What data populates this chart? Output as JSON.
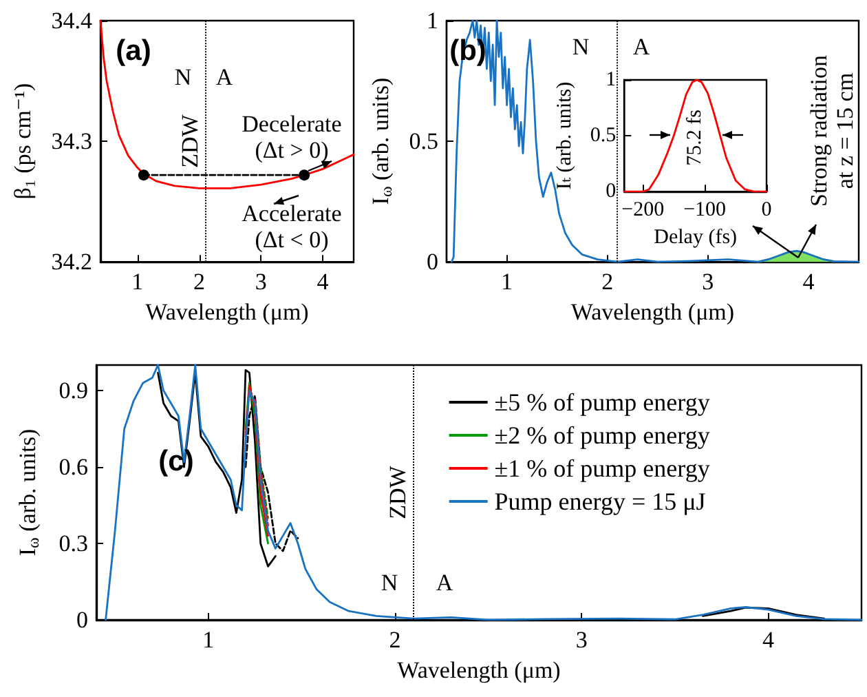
{
  "chart_data": [
    {
      "type": "line",
      "ylabel": "β₁ (ps cm⁻¹)",
      "xlabel": "Wavelength (μm)",
      "xlim": [
        0.4,
        4.5
      ],
      "xticks": [
        1,
        2,
        3,
        4
      ],
      "ylim": [
        34.2,
        34.4
      ],
      "yticks": [
        34.2,
        34.3,
        34.4
      ],
      "annotations": [
        "(a)",
        "N",
        "A",
        "Decelerate (Δt > 0)",
        "Accelerate (Δt < 0)"
      ],
      "ref_lines": [
        {
          "axis": "x",
          "value": 2.1,
          "label": "ZDW",
          "color": "#000000",
          "line_style": "dotted"
        }
      ],
      "series": [
        {
          "color": "#ff0000",
          "marker": "none",
          "line_style": "solid",
          "x": [
            0.4,
            0.45,
            0.5,
            0.6,
            0.7,
            0.85,
            1.0,
            1.1,
            1.3,
            1.6,
            2.0,
            2.5,
            3.0,
            3.5,
            3.7,
            4.0,
            4.5
          ],
          "values": [
            34.4,
            34.37,
            34.35,
            34.325,
            34.305,
            34.288,
            34.278,
            34.273,
            34.267,
            34.263,
            34.261,
            34.261,
            34.264,
            34.269,
            34.272,
            34.277,
            34.289
          ]
        },
        {
          "color": "#000000",
          "marker": "circle",
          "line_style": "dashed",
          "x": [
            1.1,
            3.7
          ],
          "values": [
            34.272,
            34.272
          ]
        }
      ]
    },
    {
      "type": "line",
      "ylabel": "I$_{ω}$ (arb. units)",
      "xlabel": "Wavelength (μm)",
      "xlim": [
        0.4,
        4.5
      ],
      "xticks": [
        1,
        2,
        3,
        4
      ],
      "ylim": [
        0,
        1
      ],
      "yticks": [
        0,
        0.5,
        1
      ],
      "annotations": [
        "(b)",
        "N",
        "A",
        "Strong radiation at z = 15 cm"
      ],
      "ref_lines": [
        {
          "axis": "x",
          "value": 2.1,
          "color": "#000000",
          "line_style": "dotted"
        }
      ],
      "series": [
        {
          "type": "area",
          "color": "#80e060",
          "x": [
            3.5,
            3.6,
            3.7,
            3.8,
            3.88,
            3.95,
            4.05,
            4.15,
            4.25
          ],
          "values": [
            0,
            0.01,
            0.025,
            0.04,
            0.045,
            0.04,
            0.025,
            0.01,
            0.002
          ]
        },
        {
          "color": "#1a73c2",
          "x": [
            0.45,
            0.47,
            0.5,
            0.53,
            0.56,
            0.6,
            0.63,
            0.66,
            0.68,
            0.7,
            0.72,
            0.74,
            0.76,
            0.78,
            0.8,
            0.82,
            0.84,
            0.86,
            0.88,
            0.9,
            0.92,
            0.94,
            0.96,
            0.98,
            1.0,
            1.02,
            1.04,
            1.06,
            1.08,
            1.1,
            1.12,
            1.14,
            1.16,
            1.18,
            1.2,
            1.23,
            1.26,
            1.29,
            1.32,
            1.36,
            1.4,
            1.44,
            1.48,
            1.52,
            1.58,
            1.65,
            1.75,
            1.9,
            2.1,
            2.3,
            2.5,
            2.8,
            3.2,
            3.5,
            3.6,
            3.7,
            3.8,
            3.88,
            3.95,
            4.05,
            4.15,
            4.25,
            4.5
          ],
          "values": [
            0,
            0.02,
            0.45,
            0.75,
            0.85,
            0.92,
            0.95,
            1.0,
            0.93,
            1.0,
            0.9,
            0.98,
            0.85,
            0.97,
            0.8,
            0.95,
            0.75,
            0.9,
            0.65,
            1.0,
            0.85,
            0.95,
            0.72,
            0.85,
            0.65,
            0.8,
            0.6,
            0.72,
            0.55,
            0.65,
            0.48,
            0.58,
            0.45,
            0.6,
            0.8,
            0.92,
            0.75,
            0.5,
            0.35,
            0.27,
            0.33,
            0.37,
            0.3,
            0.2,
            0.12,
            0.07,
            0.03,
            0.01,
            0,
            0.01,
            0,
            0.003,
            0.01,
            0,
            0.01,
            0.025,
            0.04,
            0.045,
            0.04,
            0.025,
            0.01,
            0.002,
            0
          ]
        }
      ]
    },
    {
      "type": "line",
      "ylabel": "Iₜ (arb. units)",
      "xlabel": "Delay (fs)",
      "xlim": [
        -230,
        0
      ],
      "xticks": [
        {
          "value": -200,
          "label": "−200"
        },
        {
          "value": -100,
          "label": "−100"
        },
        0
      ],
      "ylim": [
        0,
        1
      ],
      "yticks": [
        0,
        0.5,
        1
      ],
      "annotations": [
        "75.2 fs"
      ],
      "series": [
        {
          "color": "#ff0000",
          "x": [
            -230,
            -200,
            -190,
            -175,
            -160,
            -150,
            -140,
            -130,
            -120,
            -113,
            -105,
            -95,
            -85,
            -75,
            -65,
            -50,
            -35,
            -20,
            0
          ],
          "values": [
            0,
            0,
            0.02,
            0.15,
            0.35,
            0.5,
            0.68,
            0.87,
            0.98,
            1,
            0.98,
            0.88,
            0.7,
            0.5,
            0.3,
            0.1,
            0.02,
            0,
            0
          ]
        }
      ]
    },
    {
      "type": "line",
      "ylabel": "I$_{ω}$ (arb. units)",
      "xlabel": "Wavelength (μm)",
      "xlim": [
        0.4,
        4.5
      ],
      "xticks": [
        1,
        2,
        3,
        4
      ],
      "ylim": [
        0,
        1
      ],
      "yticks": [
        0,
        0.3,
        0.6,
        0.9
      ],
      "legend": "top right",
      "annotations": [
        "(c)",
        "N",
        "A"
      ],
      "ref_lines": [
        {
          "axis": "x",
          "value": 2.1,
          "label": "ZDW",
          "color": "#000000",
          "line_style": "dotted"
        }
      ],
      "x": [
        0.45,
        0.5,
        0.55,
        0.6,
        0.65,
        0.7,
        0.73,
        0.76,
        0.8,
        0.84,
        0.87,
        0.9,
        0.93,
        0.96,
        1.0,
        1.04,
        1.08,
        1.12,
        1.15,
        1.18,
        1.2,
        1.22,
        1.25,
        1.28,
        1.32,
        1.36,
        1.4,
        1.44,
        1.48,
        1.52,
        1.58,
        1.65,
        1.75,
        1.9,
        2.1,
        2.3,
        2.5,
        2.8,
        3.2,
        3.5,
        3.65,
        3.8,
        3.88,
        4.0,
        4.15,
        4.3,
        4.5
      ],
      "series": [
        {
          "name": "±5 % of pump energy",
          "color": "#000000",
          "line_style": "solid",
          "x": [
            0.73,
            0.76,
            0.8,
            0.84,
            0.87,
            0.9,
            0.93,
            0.96,
            1.0,
            1.04,
            1.08,
            1.12,
            1.15,
            1.18,
            1.2,
            1.22,
            1.25,
            1.28,
            1.32,
            1.36,
            2.5,
            3.65,
            3.8,
            3.88,
            4.0,
            4.15,
            4.3
          ],
          "values": [
            0.97,
            0.85,
            0.8,
            0.78,
            0.6,
            0.78,
            0.97,
            0.72,
            0.68,
            0.62,
            0.58,
            0.52,
            0.42,
            0.55,
            0.98,
            0.97,
            0.7,
            0.3,
            0.21,
            0.25,
            null,
            0.015,
            0.035,
            0.048,
            0.045,
            0.02,
            0.005
          ]
        },
        {
          "color": "#000000",
          "line_style": "dashed",
          "x": [
            1.2,
            1.22,
            1.25,
            1.28,
            1.32,
            1.36,
            1.4,
            1.44,
            1.48
          ],
          "values": [
            0.6,
            0.8,
            0.88,
            0.6,
            0.5,
            0.3,
            0.27,
            0.35,
            0.32
          ]
        },
        {
          "name": "±2 % of pump energy",
          "color": "#009900",
          "line_style": "solid",
          "x": [
            1.2,
            1.22,
            1.25,
            1.28,
            1.32
          ],
          "values": [
            0.75,
            0.93,
            0.8,
            0.45,
            0.3
          ]
        },
        {
          "color": "#009900",
          "line_style": "dashed",
          "x": [
            1.22,
            1.25,
            1.28,
            1.32
          ],
          "values": [
            0.88,
            0.86,
            0.6,
            0.4
          ]
        },
        {
          "name": "±1 % of pump energy",
          "color": "#ff0000",
          "line_style": "solid",
          "x": [
            1.2,
            1.22,
            1.25,
            1.28,
            1.32
          ],
          "values": [
            0.72,
            0.92,
            0.83,
            0.5,
            0.33
          ]
        },
        {
          "color": "#ff0000",
          "line_style": "dashed",
          "x": [
            1.22,
            1.25,
            1.28,
            1.32
          ],
          "values": [
            0.89,
            0.86,
            0.58,
            0.37
          ]
        },
        {
          "name": "Pump energy = 15 μJ",
          "color": "#1a73c2",
          "line_style": "solid",
          "values": [
            0,
            0.35,
            0.75,
            0.86,
            0.93,
            0.95,
            1.0,
            0.9,
            0.85,
            0.8,
            0.62,
            0.8,
            1.0,
            0.75,
            0.7,
            0.65,
            0.6,
            0.55,
            0.45,
            0.43,
            0.7,
            0.9,
            0.85,
            0.55,
            0.35,
            0.28,
            0.33,
            0.38,
            0.3,
            0.2,
            0.12,
            0.07,
            0.035,
            0.015,
            0.005,
            0.01,
            0,
            0.003,
            0.005,
            0.002,
            0.02,
            0.045,
            0.05,
            0.04,
            0.015,
            0.003,
            0
          ]
        }
      ]
    }
  ]
}
